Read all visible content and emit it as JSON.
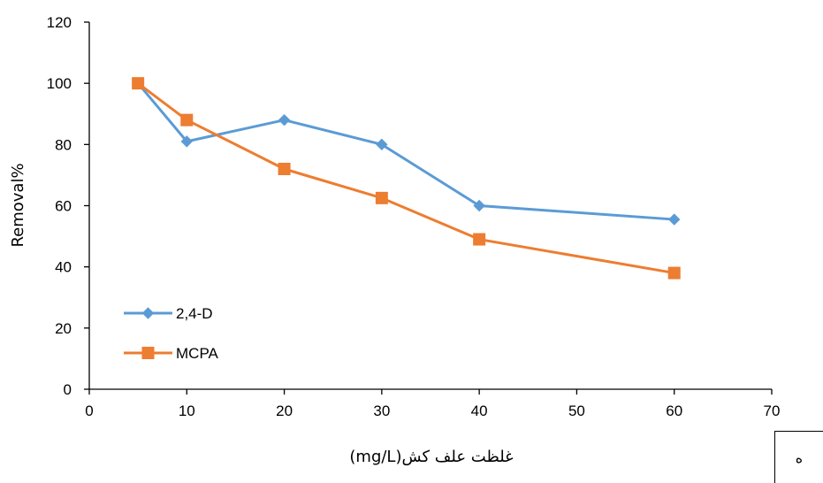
{
  "chart_data": {
    "type": "line",
    "xlabel": "غلظت علف کش(mg/L)",
    "ylabel": "Removal%",
    "xlim": [
      0,
      70
    ],
    "ylim": [
      0,
      120
    ],
    "x_ticks": [
      "0",
      "10",
      "20",
      "30",
      "40",
      "50",
      "60",
      "70"
    ],
    "y_ticks": [
      "0",
      "20",
      "40",
      "60",
      "80",
      "100",
      "120"
    ],
    "grid": false,
    "legend_position": "bottom-left",
    "series": [
      {
        "name": "2,4-D",
        "marker": "diamond",
        "color": "#5B9BD5",
        "x": [
          5,
          10,
          20,
          30,
          40,
          60
        ],
        "y": [
          100,
          81,
          88,
          80,
          60,
          55.5
        ]
      },
      {
        "name": "MCPA",
        "marker": "square",
        "color": "#ED7D31",
        "x": [
          5,
          10,
          20,
          30,
          40,
          60
        ],
        "y": [
          100,
          88,
          72,
          62.5,
          49,
          38
        ]
      }
    ]
  },
  "panel_label": "ه"
}
